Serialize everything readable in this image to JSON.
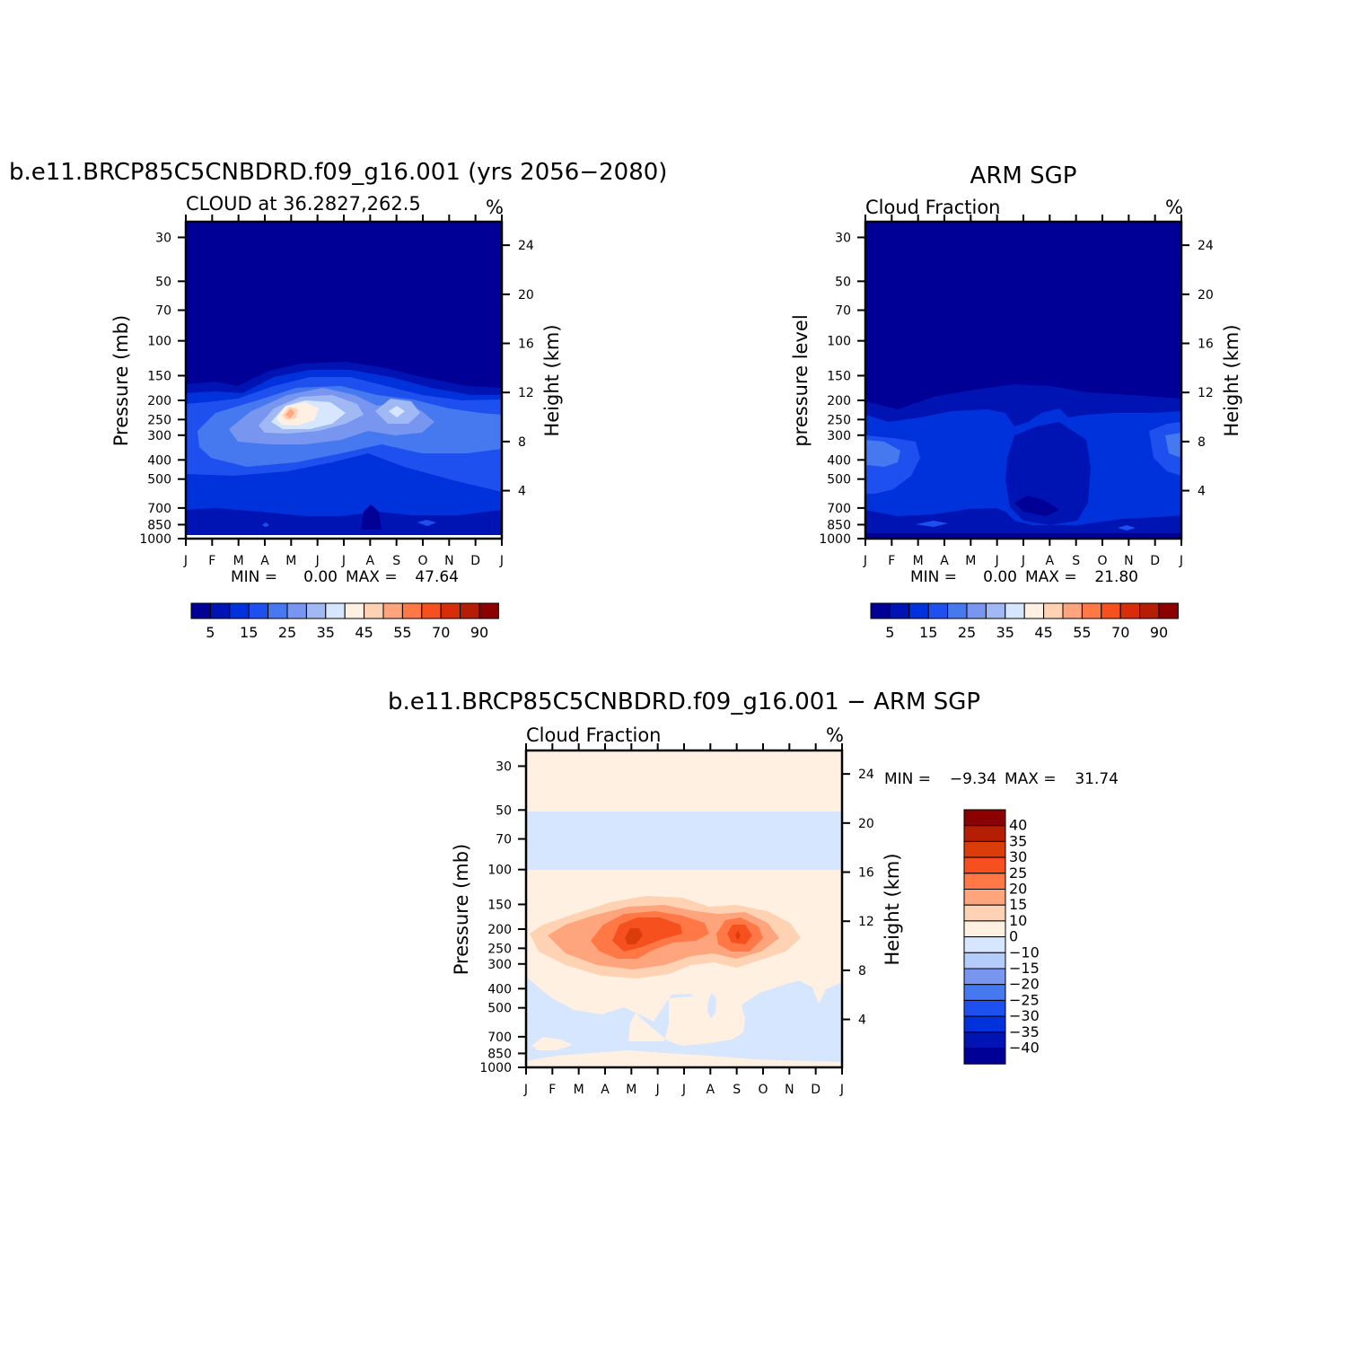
{
  "chart_data": [
    {
      "type": "heatmap",
      "title": "b.e11.BRCP85C5CNBDRD.f09_g16.001 (yrs 2056−2080)",
      "subtitle": "CLOUD at 36.2827,262.5",
      "units": "%",
      "ylabel": "Pressure (mb)",
      "y2label": "Height (km)",
      "x_tick_labels": [
        "J",
        "F",
        "M",
        "A",
        "M",
        "J",
        "J",
        "A",
        "S",
        "O",
        "N",
        "D",
        "J"
      ],
      "y_tick_labels": [
        "30",
        "50",
        "70",
        "100",
        "150",
        "200",
        "250",
        "300",
        "400",
        "500",
        "700",
        "850",
        "1000"
      ],
      "y2_tick_labels": [
        "24",
        "20",
        "16",
        "12",
        "8",
        "4"
      ],
      "stats": {
        "min_label": "MIN =",
        "min": "0.00",
        "max_label": "MAX =",
        "max": "47.64"
      },
      "colorbar": {
        "orientation": "horizontal",
        "labels": [
          "5",
          "15",
          "25",
          "35",
          "45",
          "55",
          "70",
          "90"
        ],
        "colors": [
          "#000096",
          "#0014b4",
          "#0032dc",
          "#1e50f0",
          "#4678f0",
          "#7896f0",
          "#a0b9f5",
          "#d7e6ff",
          "#fff0e1",
          "#ffd2b4",
          "#ffa57d",
          "#ff7846",
          "#f5501e",
          "#d72d0a",
          "#b41e05",
          "#8c0000"
        ]
      },
      "grid": false
    },
    {
      "type": "heatmap",
      "title": "ARM SGP",
      "subtitle": "Cloud Fraction",
      "units": "%",
      "ylabel": "pressure level",
      "y2label": "Height (km)",
      "x_tick_labels": [
        "J",
        "F",
        "M",
        "A",
        "M",
        "J",
        "J",
        "A",
        "S",
        "O",
        "N",
        "D",
        "J"
      ],
      "y_tick_labels": [
        "30",
        "50",
        "70",
        "100",
        "150",
        "200",
        "250",
        "300",
        "400",
        "500",
        "700",
        "850",
        "1000"
      ],
      "y2_tick_labels": [
        "24",
        "20",
        "16",
        "12",
        "8",
        "4"
      ],
      "stats": {
        "min_label": "MIN =",
        "min": "0.00",
        "max_label": "MAX =",
        "max": "21.80"
      },
      "colorbar": {
        "orientation": "horizontal",
        "labels": [
          "5",
          "15",
          "25",
          "35",
          "45",
          "55",
          "70",
          "90"
        ],
        "colors": [
          "#000096",
          "#0014b4",
          "#0032dc",
          "#1e50f0",
          "#4678f0",
          "#7896f0",
          "#a0b9f5",
          "#d7e6ff",
          "#fff0e1",
          "#ffd2b4",
          "#ffa57d",
          "#ff7846",
          "#f5501e",
          "#d72d0a",
          "#b41e05",
          "#8c0000"
        ]
      },
      "grid": false
    },
    {
      "type": "heatmap",
      "title": "b.e11.BRCP85C5CNBDRD.f09_g16.001 − ARM SGP",
      "subtitle": "Cloud Fraction",
      "units": "%",
      "ylabel": "Pressure (mb)",
      "y2label": "Height (km)",
      "x_tick_labels": [
        "J",
        "F",
        "M",
        "A",
        "M",
        "J",
        "J",
        "A",
        "S",
        "O",
        "N",
        "D",
        "J"
      ],
      "y_tick_labels": [
        "30",
        "50",
        "70",
        "100",
        "150",
        "200",
        "250",
        "300",
        "400",
        "500",
        "700",
        "850",
        "1000"
      ],
      "y2_tick_labels": [
        "24",
        "20",
        "16",
        "12",
        "8",
        "4"
      ],
      "stats": {
        "min_label": "MIN =",
        "min": "−9.34",
        "max_label": "MAX =",
        "max": "31.74"
      },
      "colorbar": {
        "orientation": "vertical",
        "labels": [
          "40",
          "35",
          "30",
          "25",
          "20",
          "15",
          "10",
          "0",
          "−10",
          "−15",
          "−20",
          "−25",
          "−30",
          "−35",
          "−40"
        ],
        "colors": [
          "#8c0000",
          "#b41e05",
          "#dc3c0a",
          "#f5501e",
          "#ff7846",
          "#ffa57d",
          "#ffd2b4",
          "#fff0e1",
          "#d7e6ff",
          "#b4ccfa",
          "#7896f0",
          "#4678f0",
          "#1e50f0",
          "#0032dc",
          "#0014b4",
          "#000096"
        ]
      },
      "grid": false
    }
  ]
}
